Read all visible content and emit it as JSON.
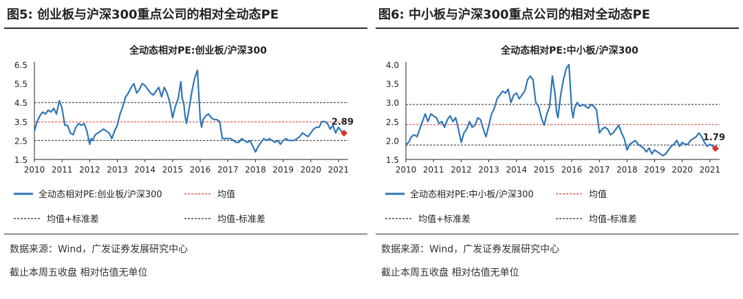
{
  "colors": {
    "series": "#2e75b6",
    "mean": "#e0302a",
    "band": "#222222",
    "marker": "#e0302a"
  },
  "charts": [
    {
      "figure_title": "图5:  创业板与沪深300重点公司的相对全动态PE",
      "source_line1": "数据来源：Wind，广发证券发展研究中心",
      "source_line2": "截止本周五收盘  相对估值无单位",
      "latest_label": "2.89",
      "legend": {
        "series": "全动态相对PE:创业板/沪深300",
        "mean": "均值",
        "upper": "均值+标准差",
        "lower": "均值-标准差"
      },
      "chart_data": {
        "type": "line",
        "title": "全动态相对PE:创业板/沪深300",
        "xlabel": "",
        "ylabel": "",
        "xlim": [
          2010,
          2021.35
        ],
        "ylim": [
          1.5,
          6.5
        ],
        "yticks": [
          "6.5",
          "5.5",
          "4.5",
          "3.5",
          "2.5",
          "1.5"
        ],
        "ytick_values": [
          6.5,
          5.5,
          4.5,
          3.5,
          2.5,
          1.5
        ],
        "xticks": [
          "2010",
          "2011",
          "2012",
          "2013",
          "2014",
          "2015",
          "2016",
          "2017",
          "2018",
          "2019",
          "2020",
          "2021"
        ],
        "mean": 3.48,
        "upper": 4.5,
        "lower": 2.5,
        "latest": {
          "x": 2021.2,
          "y": 2.89
        },
        "series": [
          {
            "name": "全动态相对PE:创业板/沪深300",
            "x": [
              2010.0,
              2010.1,
              2010.2,
              2010.3,
              2010.4,
              2010.5,
              2010.6,
              2010.7,
              2010.8,
              2010.9,
              2011.0,
              2011.1,
              2011.2,
              2011.3,
              2011.4,
              2011.5,
              2011.6,
              2011.7,
              2011.8,
              2011.9,
              2012.0,
              2012.05,
              2012.1,
              2012.2,
              2012.3,
              2012.4,
              2012.5,
              2012.6,
              2012.7,
              2012.8,
              2012.9,
              2013.0,
              2013.1,
              2013.2,
              2013.3,
              2013.4,
              2013.5,
              2013.6,
              2013.7,
              2013.8,
              2013.9,
              2014.0,
              2014.1,
              2014.2,
              2014.3,
              2014.4,
              2014.5,
              2014.6,
              2014.7,
              2014.8,
              2014.9,
              2015.0,
              2015.1,
              2015.2,
              2015.3,
              2015.35,
              2015.4,
              2015.45,
              2015.5,
              2015.6,
              2015.7,
              2015.8,
              2015.9,
              2016.0,
              2016.05,
              2016.1,
              2016.2,
              2016.3,
              2016.4,
              2016.5,
              2016.6,
              2016.7,
              2016.8,
              2016.9,
              2017.0,
              2017.1,
              2017.2,
              2017.3,
              2017.4,
              2017.5,
              2017.6,
              2017.7,
              2017.8,
              2017.9,
              2018.0,
              2018.1,
              2018.2,
              2018.3,
              2018.4,
              2018.5,
              2018.6,
              2018.7,
              2018.8,
              2018.9,
              2019.0,
              2019.1,
              2019.2,
              2019.3,
              2019.4,
              2019.5,
              2019.6,
              2019.7,
              2019.8,
              2019.9,
              2020.0,
              2020.1,
              2020.2,
              2020.3,
              2020.4,
              2020.5,
              2020.6,
              2020.7,
              2020.8,
              2020.9,
              2021.0,
              2021.1,
              2021.2
            ],
            "values": [
              3.0,
              3.5,
              3.8,
              4.0,
              3.9,
              4.1,
              4.0,
              4.2,
              3.9,
              4.6,
              4.2,
              3.3,
              3.3,
              2.9,
              2.8,
              3.2,
              3.4,
              3.3,
              3.4,
              3.0,
              2.3,
              2.6,
              2.5,
              2.8,
              2.9,
              3.0,
              3.1,
              3.0,
              2.9,
              2.6,
              3.0,
              3.3,
              3.9,
              4.3,
              4.8,
              5.0,
              5.3,
              5.5,
              5.0,
              5.2,
              5.5,
              5.4,
              5.2,
              5.0,
              4.9,
              5.1,
              5.3,
              4.8,
              5.3,
              5.0,
              4.5,
              3.7,
              4.3,
              4.7,
              5.6,
              4.7,
              4.5,
              3.8,
              3.4,
              4.2,
              5.1,
              5.8,
              6.2,
              3.6,
              3.2,
              3.6,
              3.8,
              3.9,
              3.7,
              3.6,
              3.6,
              3.5,
              2.6,
              2.6,
              2.6,
              2.6,
              2.5,
              2.4,
              2.4,
              2.6,
              2.5,
              2.4,
              2.5,
              2.2,
              1.9,
              2.2,
              2.4,
              2.6,
              2.5,
              2.6,
              2.5,
              2.4,
              2.5,
              2.3,
              2.5,
              2.6,
              2.5,
              2.5,
              2.5,
              2.6,
              2.7,
              2.9,
              2.8,
              2.7,
              2.9,
              3.1,
              3.2,
              3.2,
              3.5,
              3.5,
              3.4,
              3.1,
              3.3,
              2.9,
              3.2,
              3.0,
              2.9
            ]
          }
        ]
      }
    },
    {
      "figure_title": "图6:  中小板与沪深300重点公司的相对全动态PE",
      "source_line1": "数据来源：Wind，广发证券发展研究中心",
      "source_line2": "截止本周五收盘  相对估值无单位",
      "latest_label": "1.79",
      "legend": {
        "series": "全动态相对PE:中小板/沪深300",
        "mean": "均值",
        "upper": "均值+标准差",
        "lower": "均值-标准差"
      },
      "chart_data": {
        "type": "line",
        "title": "全动态相对PE:中小板/沪深300",
        "xlabel": "",
        "ylabel": "",
        "xlim": [
          2010,
          2021.35
        ],
        "ylim": [
          1.5,
          4.0
        ],
        "yticks": [
          "4.0",
          "3.5",
          "3.0",
          "2.5",
          "2.0",
          "1.5"
        ],
        "ytick_values": [
          4.0,
          3.5,
          3.0,
          2.5,
          2.0,
          1.5
        ],
        "xticks": [
          "2010",
          "2011",
          "2012",
          "2013",
          "2014",
          "2015",
          "2016",
          "2017",
          "2018",
          "2019",
          "2020",
          "2021"
        ],
        "mean": 2.42,
        "upper": 2.95,
        "lower": 1.88,
        "latest": {
          "x": 2021.2,
          "y": 1.79
        },
        "series": [
          {
            "name": "全动态相对PE:中小板/沪深300",
            "x": [
              2010.0,
              2010.1,
              2010.2,
              2010.3,
              2010.4,
              2010.5,
              2010.6,
              2010.7,
              2010.8,
              2010.9,
              2011.0,
              2011.1,
              2011.2,
              2011.3,
              2011.4,
              2011.5,
              2011.6,
              2011.7,
              2011.8,
              2011.9,
              2012.0,
              2012.1,
              2012.2,
              2012.3,
              2012.4,
              2012.5,
              2012.6,
              2012.7,
              2012.8,
              2012.9,
              2013.0,
              2013.1,
              2013.2,
              2013.3,
              2013.4,
              2013.5,
              2013.6,
              2013.7,
              2013.8,
              2013.9,
              2014.0,
              2014.1,
              2014.2,
              2014.3,
              2014.4,
              2014.5,
              2014.6,
              2014.7,
              2014.8,
              2014.9,
              2015.0,
              2015.1,
              2015.2,
              2015.3,
              2015.4,
              2015.45,
              2015.5,
              2015.6,
              2015.7,
              2015.8,
              2015.9,
              2016.0,
              2016.05,
              2016.1,
              2016.2,
              2016.3,
              2016.4,
              2016.5,
              2016.6,
              2016.7,
              2016.8,
              2016.9,
              2017.0,
              2017.1,
              2017.2,
              2017.3,
              2017.4,
              2017.5,
              2017.6,
              2017.7,
              2017.8,
              2017.9,
              2018.0,
              2018.1,
              2018.2,
              2018.3,
              2018.4,
              2018.5,
              2018.6,
              2018.7,
              2018.8,
              2018.9,
              2019.0,
              2019.1,
              2019.2,
              2019.3,
              2019.4,
              2019.5,
              2019.6,
              2019.7,
              2019.8,
              2019.9,
              2020.0,
              2020.1,
              2020.2,
              2020.3,
              2020.4,
              2020.5,
              2020.6,
              2020.7,
              2020.8,
              2020.9,
              2021.0,
              2021.1,
              2021.2
            ],
            "values": [
              1.9,
              1.95,
              2.1,
              2.15,
              2.1,
              2.3,
              2.5,
              2.7,
              2.5,
              2.7,
              2.65,
              2.6,
              2.45,
              2.5,
              2.35,
              2.55,
              2.65,
              2.5,
              2.6,
              2.3,
              1.95,
              2.2,
              2.3,
              2.5,
              2.35,
              2.4,
              2.6,
              2.55,
              2.3,
              2.1,
              2.4,
              2.7,
              2.85,
              3.1,
              3.2,
              3.3,
              3.25,
              3.35,
              3.0,
              3.2,
              3.25,
              3.1,
              3.2,
              3.3,
              3.6,
              3.7,
              3.6,
              3.0,
              2.9,
              2.6,
              2.4,
              2.7,
              2.9,
              3.7,
              3.2,
              2.75,
              2.6,
              3.2,
              3.6,
              3.9,
              4.0,
              2.8,
              2.6,
              2.85,
              3.0,
              2.9,
              2.95,
              2.9,
              2.85,
              2.95,
              2.9,
              2.8,
              2.2,
              2.3,
              2.35,
              2.3,
              2.15,
              2.2,
              2.3,
              2.4,
              2.2,
              2.05,
              1.75,
              1.9,
              1.95,
              2.0,
              1.9,
              1.85,
              1.8,
              1.7,
              1.8,
              1.65,
              1.75,
              1.7,
              1.65,
              1.6,
              1.65,
              1.75,
              1.85,
              1.9,
              2.0,
              1.85,
              1.95,
              1.9,
              1.9,
              2.0,
              2.05,
              2.1,
              2.2,
              2.1,
              1.95,
              1.85,
              1.9,
              1.85,
              1.79
            ]
          }
        ]
      }
    }
  ]
}
